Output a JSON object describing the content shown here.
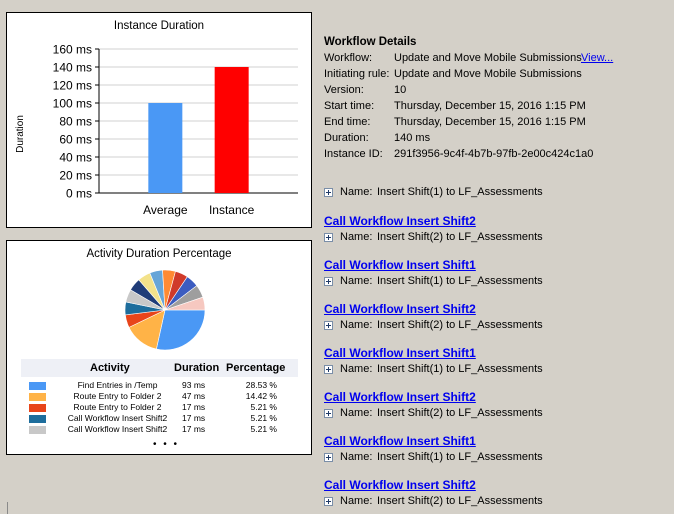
{
  "instance_chart": {
    "title": "Instance Duration",
    "ylabel": "Duration",
    "y_ticks": [
      "0 ms",
      "20 ms",
      "40 ms",
      "60 ms",
      "80 ms",
      "100 ms",
      "120 ms",
      "140 ms",
      "160 ms"
    ],
    "chart_data": {
      "type": "bar",
      "title": "Instance Duration",
      "xlabel": "",
      "ylabel": "Duration",
      "categories": [
        "Average",
        "Instance"
      ],
      "values": [
        100,
        140
      ],
      "colors": [
        "#4a98f5",
        "#ff0000"
      ],
      "ylim": [
        0,
        160
      ],
      "grid": true
    }
  },
  "activity_chart": {
    "title": "Activity Duration Percentage",
    "header": {
      "activity": "Activity",
      "duration": "Duration",
      "percentage": "Percentage"
    },
    "rows": [
      {
        "activity": "Find Entries in /Temp",
        "duration": "93 ms",
        "percentage": "28.53 %",
        "color": "#4a98f5"
      },
      {
        "activity": "Route Entry to Folder 2",
        "duration": "47 ms",
        "percentage": "14.42 %",
        "color": "#ffb347"
      },
      {
        "activity": "Route Entry to Folder 2",
        "duration": "17 ms",
        "percentage": "5.21 %",
        "color": "#e8451a"
      },
      {
        "activity": "Call Workflow Insert Shift2",
        "duration": "17 ms",
        "percentage": "5.21 %",
        "color": "#1d6d9c"
      },
      {
        "activity": "Call Workflow Insert Shift2",
        "duration": "17 ms",
        "percentage": "5.21 %",
        "color": "#c8c8c8"
      }
    ],
    "more": "• • •",
    "chart_data": {
      "type": "pie",
      "title": "Activity Duration Percentage",
      "slices": [
        {
          "label": "Find Entries in /Temp",
          "value": 28.53,
          "color": "#4a98f5"
        },
        {
          "label": "Route Entry to Folder 2",
          "value": 14.42,
          "color": "#ffb347"
        },
        {
          "label": "Route Entry to Folder 2",
          "value": 5.21,
          "color": "#e8451a"
        },
        {
          "label": "Call Workflow Insert Shift2",
          "value": 5.21,
          "color": "#1d6d9c"
        },
        {
          "label": "Call Workflow Insert Shift2",
          "value": 5.21,
          "color": "#c8c8c8"
        },
        {
          "label": "",
          "value": 5.21,
          "color": "#1f3c78"
        },
        {
          "label": "",
          "value": 5.21,
          "color": "#f3e28a"
        },
        {
          "label": "",
          "value": 5.21,
          "color": "#66a5d8"
        },
        {
          "label": "",
          "value": 5.21,
          "color": "#ff8a33"
        },
        {
          "label": "",
          "value": 5.21,
          "color": "#d03a2a"
        },
        {
          "label": "",
          "value": 5.21,
          "color": "#3b5cc0"
        },
        {
          "label": "",
          "value": 5.21,
          "color": "#9e9e9e"
        },
        {
          "label": "",
          "value": 5.21,
          "color": "#f6c8c0"
        }
      ]
    }
  },
  "details": {
    "title": "Workflow Details",
    "rows": [
      {
        "key": "Workflow:",
        "value": "Update and Move Mobile Submissions"
      },
      {
        "key": "Initiating rule:",
        "value": "Update and Move Mobile Submissions"
      },
      {
        "key": "Version:",
        "value": "10"
      },
      {
        "key": "Start time:",
        "value": "Thursday, December 15, 2016 1:15 PM"
      },
      {
        "key": "End time:",
        "value": "Thursday, December 15, 2016 1:15 PM"
      },
      {
        "key": "Duration:",
        "value": "140 ms"
      },
      {
        "key": "Instance ID:",
        "value": "291f3956-9c4f-4b7b-97fb-2e00c424c1a0"
      }
    ],
    "view_link": "View..."
  },
  "activities": {
    "first_name_line": {
      "label": "Name:",
      "value": "Insert Shift(1) to LF_Assessments"
    },
    "items": [
      {
        "title": "Call Workflow Insert Shift2",
        "label": "Name:",
        "value": "Insert Shift(2) to LF_Assessments"
      },
      {
        "title": "Call Workflow Insert Shift1",
        "label": "Name:",
        "value": "Insert Shift(1) to LF_Assessments"
      },
      {
        "title": "Call Workflow Insert Shift2",
        "label": "Name:",
        "value": "Insert Shift(2) to LF_Assessments"
      },
      {
        "title": "Call Workflow Insert Shift1",
        "label": "Name:",
        "value": "Insert Shift(1) to LF_Assessments"
      },
      {
        "title": "Call Workflow Insert Shift2",
        "label": "Name:",
        "value": "Insert Shift(2) to LF_Assessments"
      },
      {
        "title": "Call Workflow Insert Shift1",
        "label": "Name:",
        "value": "Insert Shift(1) to LF_Assessments"
      },
      {
        "title": "Call Workflow Insert Shift2",
        "label": "Name:",
        "value": "Insert Shift(2) to LF_Assessments"
      }
    ]
  }
}
